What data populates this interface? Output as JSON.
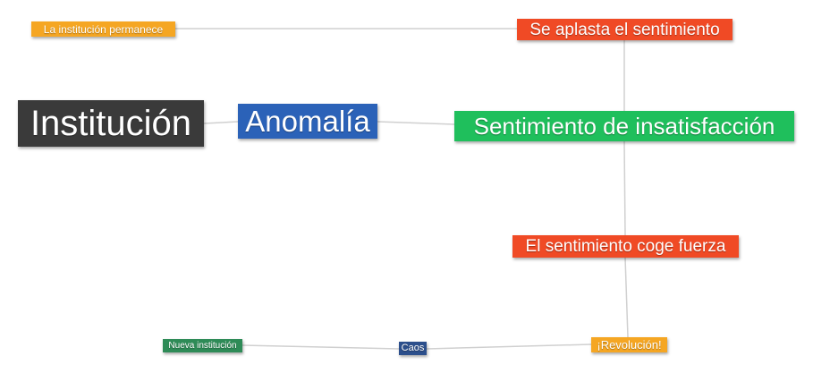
{
  "nodes": {
    "institucion": {
      "label": "Institución",
      "color": "#3a3a3a"
    },
    "anomalia": {
      "label": "Anomalía",
      "color": "#2b62b8"
    },
    "sentimiento_insatisfaccion": {
      "label": "Sentimiento de insatisfacción",
      "color": "#1fbf5c"
    },
    "se_aplasta": {
      "label": "Se aplasta el sentimiento",
      "color": "#f04a25"
    },
    "institucion_permanece": {
      "label": "La institución permanece",
      "color": "#f5a623"
    },
    "coge_fuerza": {
      "label": "El sentimiento coge fuerza",
      "color": "#f04a25"
    },
    "revolucion": {
      "label": "¡Revolución!",
      "color": "#f5a623"
    },
    "caos": {
      "label": "Caos",
      "color": "#2c4f8c"
    },
    "nueva_institucion": {
      "label": "Nueva institución",
      "color": "#2e8b57"
    }
  },
  "edges": [
    [
      "institucion",
      "anomalia"
    ],
    [
      "anomalia",
      "sentimiento_insatisfaccion"
    ],
    [
      "sentimiento_insatisfaccion",
      "se_aplasta"
    ],
    [
      "se_aplasta",
      "institucion_permanece"
    ],
    [
      "sentimiento_insatisfaccion",
      "coge_fuerza"
    ],
    [
      "coge_fuerza",
      "revolucion"
    ],
    [
      "revolucion",
      "caos"
    ],
    [
      "caos",
      "nueva_institucion"
    ]
  ]
}
